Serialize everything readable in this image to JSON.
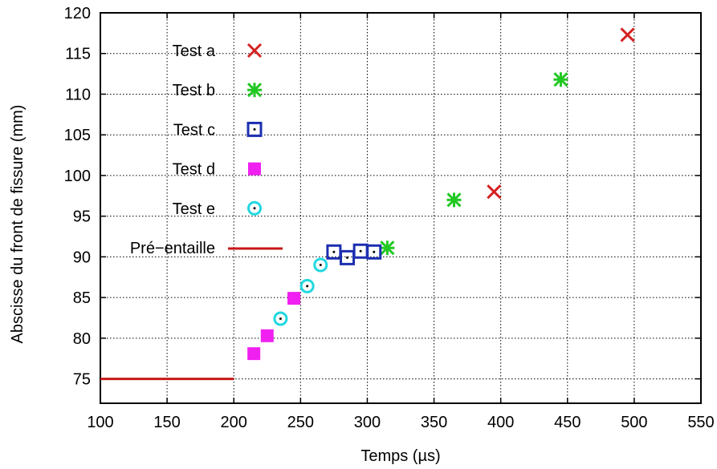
{
  "chart_data": {
    "type": "scatter",
    "xlabel": "Temps (µs)",
    "ylabel": "Abscisse du front de fissure (mm)",
    "xlim": [
      100,
      550
    ],
    "ylim": [
      72,
      120
    ],
    "xticks": [
      100,
      150,
      200,
      250,
      300,
      350,
      400,
      450,
      500,
      550
    ],
    "yticks": [
      75,
      80,
      85,
      90,
      95,
      100,
      105,
      110,
      115,
      120
    ],
    "grid": true,
    "legend_position": "top-left",
    "series": [
      {
        "name": "Test a",
        "marker": "cross",
        "color": "#d42020",
        "x": [
          395,
          495
        ],
        "y": [
          98,
          117.3
        ]
      },
      {
        "name": "Test b",
        "marker": "star",
        "color": "#22c822",
        "x": [
          315,
          365,
          445
        ],
        "y": [
          91.1,
          97,
          111.8
        ]
      },
      {
        "name": "Test c",
        "marker": "square-dot",
        "color": "#1c2fb0",
        "x": [
          275,
          285,
          295,
          305
        ],
        "y": [
          90.6,
          89.9,
          90.7,
          90.6
        ]
      },
      {
        "name": "Test d",
        "marker": "filled-square",
        "color": "#f020f0",
        "x": [
          215,
          225,
          245
        ],
        "y": [
          78.1,
          80.3,
          84.9
        ]
      },
      {
        "name": "Test e",
        "marker": "circle-dot",
        "color": "#20d8e0",
        "x": [
          235,
          255,
          265
        ],
        "y": [
          82.4,
          86.4,
          89
        ]
      },
      {
        "name": "Pré−entaille",
        "marker": "line",
        "color": "#c81818",
        "x": [
          100,
          200
        ],
        "y": [
          75,
          75
        ]
      }
    ]
  }
}
